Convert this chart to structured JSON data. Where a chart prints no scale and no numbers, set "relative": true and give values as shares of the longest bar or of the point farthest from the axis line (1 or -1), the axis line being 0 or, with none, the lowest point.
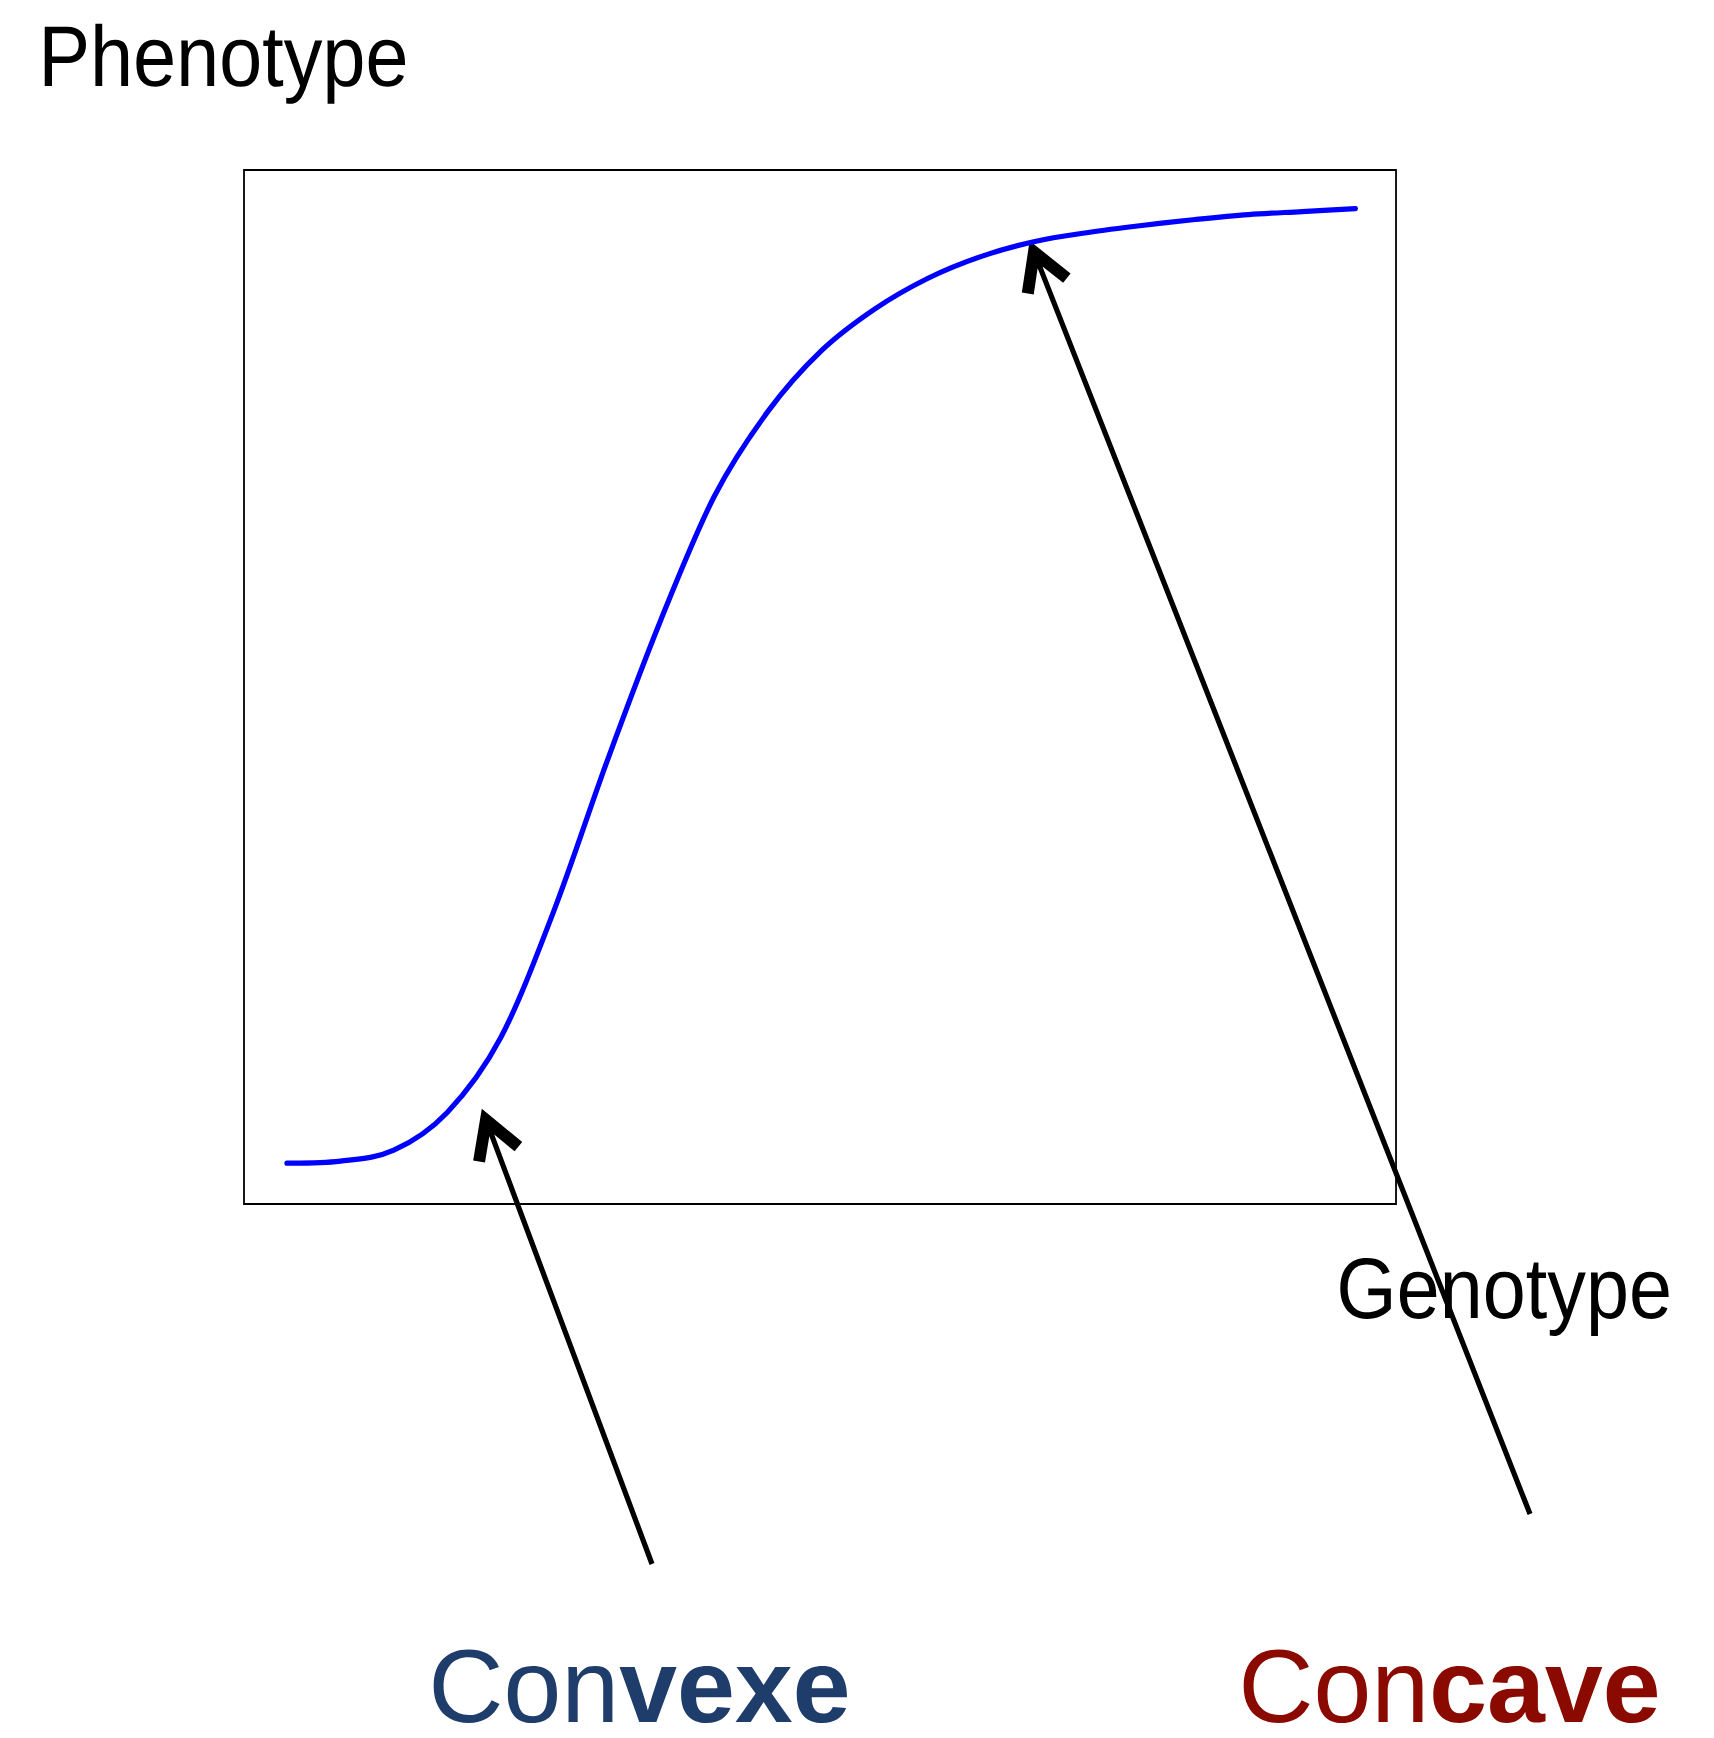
{
  "chart_data": {
    "type": "line",
    "relative": true,
    "xlabel": "Genotype",
    "ylabel": "Phenotype",
    "categories": [
      null,
      null,
      null,
      null,
      null,
      null,
      null,
      null,
      null,
      null,
      null,
      null,
      null,
      null,
      null,
      null,
      null,
      null,
      null,
      null,
      null
    ],
    "values": [
      0.041,
      0.043,
      0.054,
      0.092,
      0.167,
      0.295,
      0.446,
      0.587,
      0.711,
      0.796,
      0.857,
      0.899,
      0.93,
      0.952,
      0.967,
      0.976,
      0.983,
      0.989,
      0.994,
      0.997,
      1.0
    ],
    "color": "#0000ff",
    "annotations": [
      "Con**vexe**",
      "Con**cave**"
    ]
  }
}
